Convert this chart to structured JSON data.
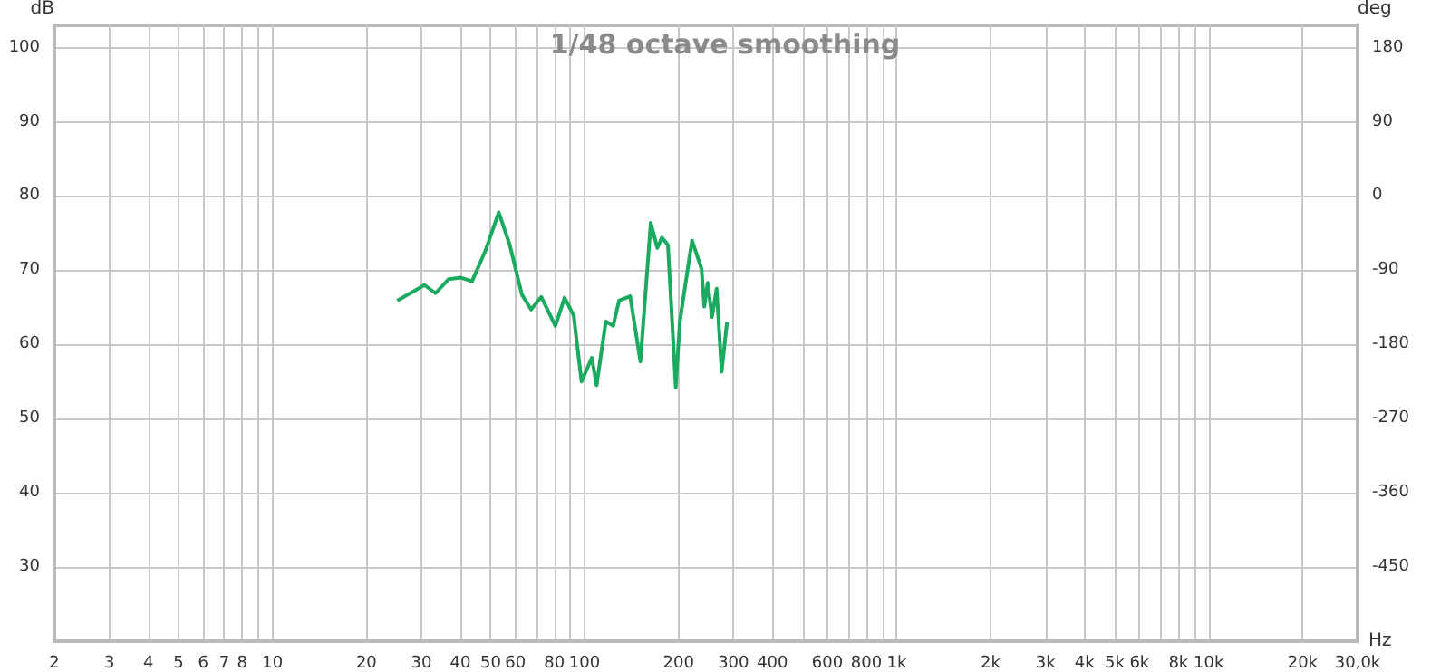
{
  "chart_data": {
    "type": "line",
    "title": "1/48 octave smoothing",
    "xlabel": "Hz",
    "ylabel": "dB",
    "y2label": "deg",
    "log": "x",
    "grid": true,
    "marker": "none",
    "line_style": "solid",
    "xlim": [
      2,
      30000
    ],
    "xticks": [
      2,
      3,
      4,
      5,
      6,
      7,
      8,
      {
        "value": 9,
        "label": null
      },
      10,
      20,
      30,
      40,
      50,
      60,
      {
        "value": 70,
        "label": null
      },
      80,
      {
        "value": 90,
        "label": null
      },
      100,
      200,
      300,
      400,
      {
        "value": 500,
        "label": null
      },
      600,
      {
        "value": 700,
        "label": null
      },
      800,
      {
        "value": 900,
        "label": null
      },
      {
        "value": 1000,
        "label": "1k"
      },
      {
        "value": 2000,
        "label": "2k"
      },
      {
        "value": 3000,
        "label": "3k"
      },
      {
        "value": 4000,
        "label": "4k"
      },
      {
        "value": 5000,
        "label": "5k"
      },
      {
        "value": 6000,
        "label": "6k"
      },
      {
        "value": 7000,
        "label": null
      },
      {
        "value": 8000,
        "label": "8k"
      },
      {
        "value": 9000,
        "label": null
      },
      {
        "value": 10000,
        "label": "10k"
      },
      {
        "value": 20000,
        "label": "20k"
      },
      {
        "value": 30000,
        "label": "30,0k"
      }
    ],
    "ylim": [
      20,
      103
    ],
    "yticks": [
      30,
      40,
      50,
      60,
      70,
      80,
      90,
      100
    ],
    "y2lim": [
      -540,
      207
    ],
    "y2ticks": [
      -450,
      -360,
      -270,
      -180,
      -90,
      0,
      90,
      180
    ],
    "series": [
      {
        "color": "#1aaa5f",
        "x": [
          25.1,
          30.7,
          33.3,
          36.7,
          40.2,
          43.6,
          48.1,
          53.1,
          57.6,
          63.0,
          67.4,
          72.7,
          80.6,
          86.3,
          92.3,
          97.8,
          105.5,
          109.3,
          117,
          123.5,
          129,
          140,
          151,
          163,
          171,
          177,
          185,
          196,
          202,
          221,
          237,
          242,
          248,
          256,
          265,
          275,
          286
        ],
        "values": [
          65.9,
          68.0,
          66.9,
          68.8,
          69.0,
          68.5,
          72.6,
          77.8,
          73.4,
          66.7,
          64.7,
          66.4,
          62.5,
          66.3,
          63.9,
          55.0,
          58.2,
          54.5,
          63.1,
          62.5,
          65.9,
          66.5,
          57.7,
          76.4,
          73.0,
          74.4,
          73.4,
          54.2,
          63.1,
          74.0,
          70.2,
          65.1,
          68.3,
          63.7,
          67.5,
          56.3,
          63.0
        ]
      }
    ]
  }
}
